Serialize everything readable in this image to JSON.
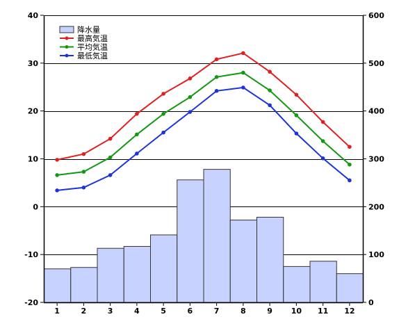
{
  "chart_data": {
    "type": "bar+line",
    "categories": [
      "1",
      "2",
      "3",
      "4",
      "5",
      "6",
      "7",
      "8",
      "9",
      "10",
      "11",
      "12"
    ],
    "bar_series": {
      "name": "降水量",
      "axis": "right",
      "values": [
        70,
        73,
        113,
        117,
        141,
        256,
        278,
        172,
        178,
        75,
        86,
        60
      ],
      "color": "#c8d2ff",
      "stroke": "#333333"
    },
    "series": [
      {
        "name": "最高気温",
        "axis": "left",
        "color": "#e02020",
        "values": [
          9.8,
          11.0,
          14.2,
          19.4,
          23.6,
          26.8,
          30.8,
          32.1,
          28.2,
          23.4,
          17.7,
          12.5
        ]
      },
      {
        "name": "平均気温",
        "axis": "left",
        "color": "#119911",
        "values": [
          6.6,
          7.3,
          10.3,
          15.1,
          19.4,
          22.9,
          27.1,
          28.0,
          24.3,
          19.1,
          13.7,
          8.8
        ]
      },
      {
        "name": "最低気温",
        "axis": "left",
        "color": "#1a33dd",
        "values": [
          3.4,
          4.0,
          6.6,
          11.1,
          15.5,
          19.8,
          24.2,
          24.9,
          21.2,
          15.3,
          10.1,
          5.5
        ]
      }
    ],
    "left_axis": {
      "min": -20,
      "max": 40,
      "step": 10,
      "ticks": [
        "-20",
        "-10",
        "0",
        "10",
        "20",
        "30",
        "40"
      ]
    },
    "right_axis": {
      "min": 0,
      "max": 600,
      "step": 100,
      "ticks": [
        "0",
        "100",
        "200",
        "300",
        "400",
        "500",
        "600"
      ]
    },
    "grid": true,
    "legend_position": "top-left"
  }
}
